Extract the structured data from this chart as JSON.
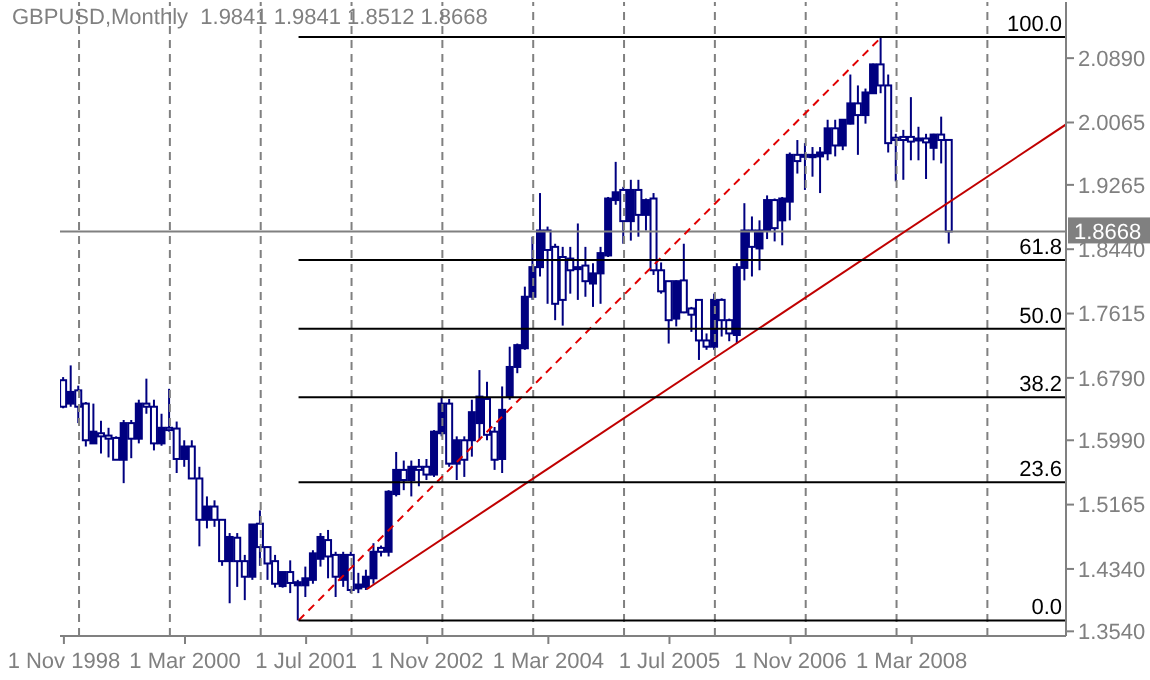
{
  "chart_data": {
    "type": "candlestick",
    "title": "GBPUSD,Monthly  1.9841 1.9841 1.8512 1.8668",
    "color": "#000080",
    "x": [
      "1998-11",
      "1998-12",
      "1999-01",
      "1999-02",
      "1999-03",
      "1999-04",
      "1999-05",
      "1999-06",
      "1999-07",
      "1999-08",
      "1999-09",
      "1999-10",
      "1999-11",
      "1999-12",
      "2000-01",
      "2000-02",
      "2000-03",
      "2000-04",
      "2000-05",
      "2000-06",
      "2000-07",
      "2000-08",
      "2000-09",
      "2000-10",
      "2000-11",
      "2000-12",
      "2001-01",
      "2001-02",
      "2001-03",
      "2001-04",
      "2001-05",
      "2001-06",
      "2001-07",
      "2001-08",
      "2001-09",
      "2001-10",
      "2001-11",
      "2001-12",
      "2002-01",
      "2002-02",
      "2002-03",
      "2002-04",
      "2002-05",
      "2002-06",
      "2002-07",
      "2002-08",
      "2002-09",
      "2002-10",
      "2002-11",
      "2002-12",
      "2003-01",
      "2003-02",
      "2003-03",
      "2003-04",
      "2003-05",
      "2003-06",
      "2003-07",
      "2003-08",
      "2003-09",
      "2003-10",
      "2003-11",
      "2003-12",
      "2004-01",
      "2004-02",
      "2004-03",
      "2004-04",
      "2004-05",
      "2004-06",
      "2004-07",
      "2004-08",
      "2004-09",
      "2004-10",
      "2004-11",
      "2004-12",
      "2005-01",
      "2005-02",
      "2005-03",
      "2005-04",
      "2005-05",
      "2005-06",
      "2005-07",
      "2005-08",
      "2005-09",
      "2005-10",
      "2005-11",
      "2005-12",
      "2006-01",
      "2006-02",
      "2006-03",
      "2006-04",
      "2006-05",
      "2006-06",
      "2006-07",
      "2006-08",
      "2006-09",
      "2006-10",
      "2006-11",
      "2006-12",
      "2007-01",
      "2007-02",
      "2007-03",
      "2007-04",
      "2007-05",
      "2007-06",
      "2007-07",
      "2007-08",
      "2007-09",
      "2007-10",
      "2007-11",
      "2007-12",
      "2008-01",
      "2008-02",
      "2008-03",
      "2008-04",
      "2008-05",
      "2008-06",
      "2008-07",
      "2008-08"
    ],
    "ohlc": [
      [
        1.676,
        1.68,
        1.64,
        1.642
      ],
      [
        1.646,
        1.695,
        1.642,
        1.661
      ],
      [
        1.663,
        1.669,
        1.621,
        1.642
      ],
      [
        1.646,
        1.648,
        1.591,
        1.599
      ],
      [
        1.595,
        1.646,
        1.595,
        1.61
      ],
      [
        1.608,
        1.624,
        1.582,
        1.604
      ],
      [
        1.605,
        1.615,
        1.577,
        1.601
      ],
      [
        1.602,
        1.604,
        1.574,
        1.574
      ],
      [
        1.574,
        1.625,
        1.544,
        1.621
      ],
      [
        1.621,
        1.625,
        1.576,
        1.601
      ],
      [
        1.601,
        1.651,
        1.595,
        1.646
      ],
      [
        1.646,
        1.678,
        1.633,
        1.642
      ],
      [
        1.642,
        1.651,
        1.586,
        1.595
      ],
      [
        1.595,
        1.633,
        1.592,
        1.615
      ],
      [
        1.615,
        1.665,
        1.61,
        1.612
      ],
      [
        1.614,
        1.623,
        1.557,
        1.575
      ],
      [
        1.575,
        1.599,
        1.565,
        1.591
      ],
      [
        1.591,
        1.599,
        1.55,
        1.55
      ],
      [
        1.55,
        1.565,
        1.463,
        1.497
      ],
      [
        1.497,
        1.527,
        1.486,
        1.514
      ],
      [
        1.514,
        1.522,
        1.488,
        1.497
      ],
      [
        1.497,
        1.497,
        1.438,
        1.444
      ],
      [
        1.444,
        1.48,
        1.39,
        1.475
      ],
      [
        1.474,
        1.48,
        1.411,
        1.444
      ],
      [
        1.444,
        1.452,
        1.394,
        1.424
      ],
      [
        1.424,
        1.491,
        1.42,
        1.491
      ],
      [
        1.492,
        1.509,
        1.438,
        1.462
      ],
      [
        1.462,
        1.463,
        1.42,
        1.441
      ],
      [
        1.444,
        1.452,
        1.41,
        1.415
      ],
      [
        1.412,
        1.43,
        1.41,
        1.43
      ],
      [
        1.43,
        1.445,
        1.403,
        1.416
      ],
      [
        1.413,
        1.42,
        1.368,
        1.417
      ],
      [
        1.413,
        1.437,
        1.398,
        1.422
      ],
      [
        1.42,
        1.458,
        1.415,
        1.454
      ],
      [
        1.447,
        1.48,
        1.437,
        1.475
      ],
      [
        1.471,
        1.484,
        1.422,
        1.45
      ],
      [
        1.452,
        1.456,
        1.398,
        1.424
      ],
      [
        1.42,
        1.456,
        1.411,
        1.452
      ],
      [
        1.452,
        1.456,
        1.403,
        1.407
      ],
      [
        1.409,
        1.429,
        1.403,
        1.414
      ],
      [
        1.411,
        1.433,
        1.407,
        1.424
      ],
      [
        1.422,
        1.467,
        1.415,
        1.456
      ],
      [
        1.461,
        1.464,
        1.45,
        1.456
      ],
      [
        1.456,
        1.535,
        1.45,
        1.533
      ],
      [
        1.53,
        1.584,
        1.527,
        1.561
      ],
      [
        1.561,
        1.573,
        1.535,
        1.548
      ],
      [
        1.548,
        1.573,
        1.527,
        1.565
      ],
      [
        1.565,
        1.575,
        1.54,
        1.561
      ],
      [
        1.565,
        1.575,
        1.548,
        1.555
      ],
      [
        1.555,
        1.612,
        1.552,
        1.61
      ],
      [
        1.608,
        1.655,
        1.604,
        1.646
      ],
      [
        1.646,
        1.652,
        1.565,
        1.569
      ],
      [
        1.569,
        1.604,
        1.548,
        1.599
      ],
      [
        1.599,
        1.604,
        1.552,
        1.574
      ],
      [
        1.599,
        1.651,
        1.578,
        1.635
      ],
      [
        1.621,
        1.689,
        1.599,
        1.655
      ],
      [
        1.652,
        1.674,
        1.599,
        1.606
      ],
      [
        1.61,
        1.616,
        1.561,
        1.574
      ],
      [
        1.575,
        1.668,
        1.557,
        1.638
      ],
      [
        1.655,
        1.719,
        1.651,
        1.693
      ],
      [
        1.693,
        1.723,
        1.685,
        1.721
      ],
      [
        1.717,
        1.796,
        1.715,
        1.783
      ],
      [
        1.783,
        1.86,
        1.779,
        1.821
      ],
      [
        1.821,
        1.916,
        1.809,
        1.868
      ],
      [
        1.868,
        1.873,
        1.774,
        1.843
      ],
      [
        1.847,
        1.851,
        1.753,
        1.774
      ],
      [
        1.834,
        1.847,
        1.746,
        1.779
      ],
      [
        1.832,
        1.847,
        1.787,
        1.817
      ],
      [
        1.821,
        1.877,
        1.779,
        1.819
      ],
      [
        1.823,
        1.847,
        1.783,
        1.803
      ],
      [
        1.8,
        1.826,
        1.77,
        1.813
      ],
      [
        1.813,
        1.847,
        1.774,
        1.839
      ],
      [
        1.836,
        1.911,
        1.834,
        1.909
      ],
      [
        1.907,
        1.956,
        1.901,
        1.917
      ],
      [
        1.92,
        1.924,
        1.851,
        1.88
      ],
      [
        1.88,
        1.933,
        1.855,
        1.92
      ],
      [
        1.92,
        1.933,
        1.86,
        1.888
      ],
      [
        1.888,
        1.909,
        1.868,
        1.907
      ],
      [
        1.909,
        1.916,
        1.811,
        1.817
      ],
      [
        1.817,
        1.827,
        1.787,
        1.79
      ],
      [
        1.803,
        1.803,
        1.723,
        1.753
      ],
      [
        1.755,
        1.804,
        1.745,
        1.803
      ],
      [
        1.804,
        1.851,
        1.762,
        1.763
      ],
      [
        1.768,
        1.77,
        1.738,
        1.76
      ],
      [
        1.779,
        1.779,
        1.702,
        1.727
      ],
      [
        1.727,
        1.736,
        1.715,
        1.719
      ],
      [
        1.719,
        1.787,
        1.715,
        1.779
      ],
      [
        1.779,
        1.781,
        1.732,
        1.753
      ],
      [
        1.753,
        1.755,
        1.726,
        1.736
      ],
      [
        1.734,
        1.826,
        1.723,
        1.821
      ],
      [
        1.82,
        1.903,
        1.804,
        1.868
      ],
      [
        1.868,
        1.886,
        1.809,
        1.847
      ],
      [
        1.845,
        1.881,
        1.817,
        1.868
      ],
      [
        1.868,
        1.913,
        1.857,
        1.907
      ],
      [
        1.907,
        1.909,
        1.854,
        1.871
      ],
      [
        1.881,
        1.911,
        1.849,
        1.909
      ],
      [
        1.905,
        1.968,
        1.881,
        1.965
      ],
      [
        1.965,
        1.984,
        1.941,
        1.957
      ],
      [
        1.965,
        1.98,
        1.92,
        1.963
      ],
      [
        1.962,
        1.975,
        1.937,
        1.965
      ],
      [
        1.963,
        1.975,
        1.916,
        1.968
      ],
      [
        1.967,
        2.01,
        1.958,
        1.999
      ],
      [
        1.999,
        2.01,
        1.963,
        1.977
      ],
      [
        1.977,
        2.01,
        1.971,
        2.01
      ],
      [
        2.005,
        2.068,
        2.004,
        2.031
      ],
      [
        2.031,
        2.054,
        1.965,
        2.016
      ],
      [
        2.016,
        2.05,
        2.005,
        2.045
      ],
      [
        2.044,
        2.082,
        2.044,
        2.081
      ],
      [
        2.081,
        2.116,
        2.044,
        2.054
      ],
      [
        2.054,
        2.068,
        1.968,
        1.98
      ],
      [
        1.987,
        1.992,
        1.931,
        1.984
      ],
      [
        1.988,
        1.997,
        1.933,
        1.984
      ],
      [
        1.988,
        2.039,
        1.958,
        1.982
      ],
      [
        1.986,
        2.001,
        1.958,
        1.984
      ],
      [
        1.986,
        1.992,
        1.934,
        1.981
      ],
      [
        1.974,
        1.992,
        1.958,
        1.991
      ],
      [
        1.991,
        2.014,
        1.954,
        1.984
      ],
      [
        1.9841,
        1.9841,
        1.8512,
        1.8668
      ]
    ],
    "series": [
      {
        "type": "line",
        "x": [
          "2001-06",
          "2007-11"
        ],
        "values": [
          1.368,
          2.116
        ],
        "color": "#e00000",
        "line_style": "dashed"
      },
      {
        "type": "line",
        "x": [
          "2002-03",
          "2009-11-13"
        ],
        "values": [
          1.408,
          2.004
        ],
        "color": "#c00000",
        "line_style": "solid"
      },
      {
        "type": "line",
        "x": [
          "2001-06",
          "2009-11-13"
        ],
        "values": [
          2.116,
          2.116
        ],
        "color": "#000000",
        "line_style": "solid"
      },
      {
        "type": "line",
        "x": [
          "2001-06",
          "2009-11-13"
        ],
        "values": [
          1.83,
          1.83
        ],
        "color": "#000000",
        "line_style": "solid"
      },
      {
        "type": "line",
        "x": [
          "2001-06",
          "2009-11-13"
        ],
        "values": [
          1.742,
          1.742
        ],
        "color": "#000000",
        "line_style": "solid"
      },
      {
        "type": "line",
        "x": [
          "2001-06",
          "2009-11-13"
        ],
        "values": [
          1.654,
          1.654
        ],
        "color": "#000000",
        "line_style": "solid"
      },
      {
        "type": "line",
        "x": [
          "2001-06",
          "2009-11-13"
        ],
        "values": [
          1.545,
          1.545
        ],
        "color": "#000000",
        "line_style": "solid"
      },
      {
        "type": "line",
        "x": [
          "2001-06",
          "2009-11-13"
        ],
        "values": [
          1.368,
          1.368
        ],
        "color": "#000000",
        "line_style": "solid"
      }
    ],
    "annotations": [
      {
        "text": "100.0",
        "x": "2009-11-13",
        "y": 2.116
      },
      {
        "text": "61.8",
        "x": "2009-11-13",
        "y": 1.83
      },
      {
        "text": "50.0",
        "x": "2009-11-13",
        "y": 1.742
      },
      {
        "text": "38.2",
        "x": "2009-11-13",
        "y": 1.654
      },
      {
        "text": "23.6",
        "x": "2009-11-13",
        "y": 1.545
      },
      {
        "text": "0.0",
        "x": "2009-11-13",
        "y": 1.368
      }
    ],
    "ref_lines": [
      {
        "axis": "y",
        "value": 1.8668,
        "label": "1.8668",
        "color": "#808080",
        "line_style": "solid"
      },
      {
        "axis": "x",
        "value": "1999-01",
        "color": "#808080",
        "line_style": "dashed"
      },
      {
        "axis": "x",
        "value": "2000-01",
        "color": "#808080",
        "line_style": "dashed"
      },
      {
        "axis": "x",
        "value": "2001-01",
        "color": "#808080",
        "line_style": "dashed"
      },
      {
        "axis": "x",
        "value": "2002-01",
        "color": "#808080",
        "line_style": "dashed"
      },
      {
        "axis": "x",
        "value": "2003-01",
        "color": "#808080",
        "line_style": "dashed"
      },
      {
        "axis": "x",
        "value": "2004-01",
        "color": "#808080",
        "line_style": "dashed"
      },
      {
        "axis": "x",
        "value": "2005-01",
        "color": "#808080",
        "line_style": "dashed"
      },
      {
        "axis": "x",
        "value": "2006-01",
        "color": "#808080",
        "line_style": "dashed"
      },
      {
        "axis": "x",
        "value": "2007-01",
        "color": "#808080",
        "line_style": "dashed"
      },
      {
        "axis": "x",
        "value": "2008-01",
        "color": "#808080",
        "line_style": "dashed"
      },
      {
        "axis": "x",
        "value": "2009-01",
        "color": "#808080",
        "line_style": "dashed"
      }
    ],
    "xlim": [
      "1998-10-16",
      "2009-11-13"
    ],
    "xticks": [
      {
        "value": "1998-11",
        "label": "1 Nov 1998"
      },
      {
        "value": "2000-03",
        "label": "1 Mar 2000"
      },
      {
        "value": "2001-07",
        "label": "1 Jul 2001"
      },
      {
        "value": "2002-11",
        "label": "1 Nov 2002"
      },
      {
        "value": "2004-03",
        "label": "1 Mar 2004"
      },
      {
        "value": "2005-07",
        "label": "1 Jul 2005"
      },
      {
        "value": "2006-11",
        "label": "1 Nov 2006"
      },
      {
        "value": "2008-03",
        "label": "1 Mar 2008"
      }
    ],
    "ylim": [
      1.348,
      2.161
    ],
    "yticks": [
      {
        "value": 2.089,
        "label": "2.0890"
      },
      {
        "value": 2.0065,
        "label": "2.0065"
      },
      {
        "value": 1.9265,
        "label": "1.9265"
      },
      {
        "value": 1.844,
        "label": "1.8440"
      },
      {
        "value": 1.7615,
        "label": "1.7615"
      },
      {
        "value": 1.679,
        "label": "1.6790"
      },
      {
        "value": 1.599,
        "label": "1.5990"
      },
      {
        "value": 1.5165,
        "label": "1.5165"
      },
      {
        "value": 1.434,
        "label": "1.4340"
      },
      {
        "value": 1.354,
        "label": "1.3540"
      }
    ]
  }
}
